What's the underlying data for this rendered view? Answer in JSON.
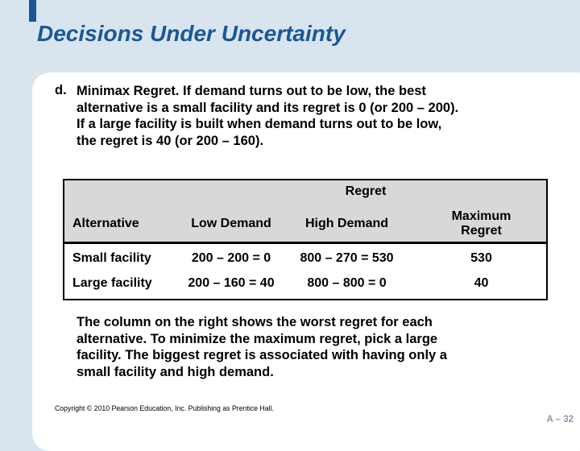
{
  "slide": {
    "title": "Decisions Under Uncertainty",
    "page_number": "A – 32",
    "copyright": "Copyright © 2010 Pearson Education, Inc. Publishing as Prentice Hall.",
    "colors": {
      "background": "#d9e5ee",
      "accent_navy": "#1a5796",
      "table_header_bg": "#d8d8d8",
      "page_number_gray": "#8b99a7"
    }
  },
  "body": {
    "item_marker": "d.",
    "paragraph1_lines": [
      "Minimax Regret. If demand turns out to be low, the best",
      "alternative is a small facility and its regret is 0 (or 200 – 200).",
      "If a large facility is built when demand turns out to be low,",
      "the regret is 40 (or 200 – 160)."
    ],
    "paragraph2_lines": [
      "The column on the right shows the worst regret for each",
      "alternative. To minimize the maximum regret, pick a large",
      "facility. The biggest regret is associated with having only a",
      "small facility and high demand."
    ]
  },
  "table": {
    "span_header": "Regret",
    "columns": [
      "Alternative",
      "Low Demand",
      "High Demand",
      "Maximum Regret"
    ],
    "rows": [
      {
        "alternative": "Small facility",
        "low_demand": "200 – 200 = 0",
        "high_demand": "800 – 270 = 530",
        "maximum_regret": "530"
      },
      {
        "alternative": "Large facility",
        "low_demand": "200 – 160 = 40",
        "high_demand": "800 – 800 = 0",
        "maximum_regret": "40"
      }
    ]
  }
}
